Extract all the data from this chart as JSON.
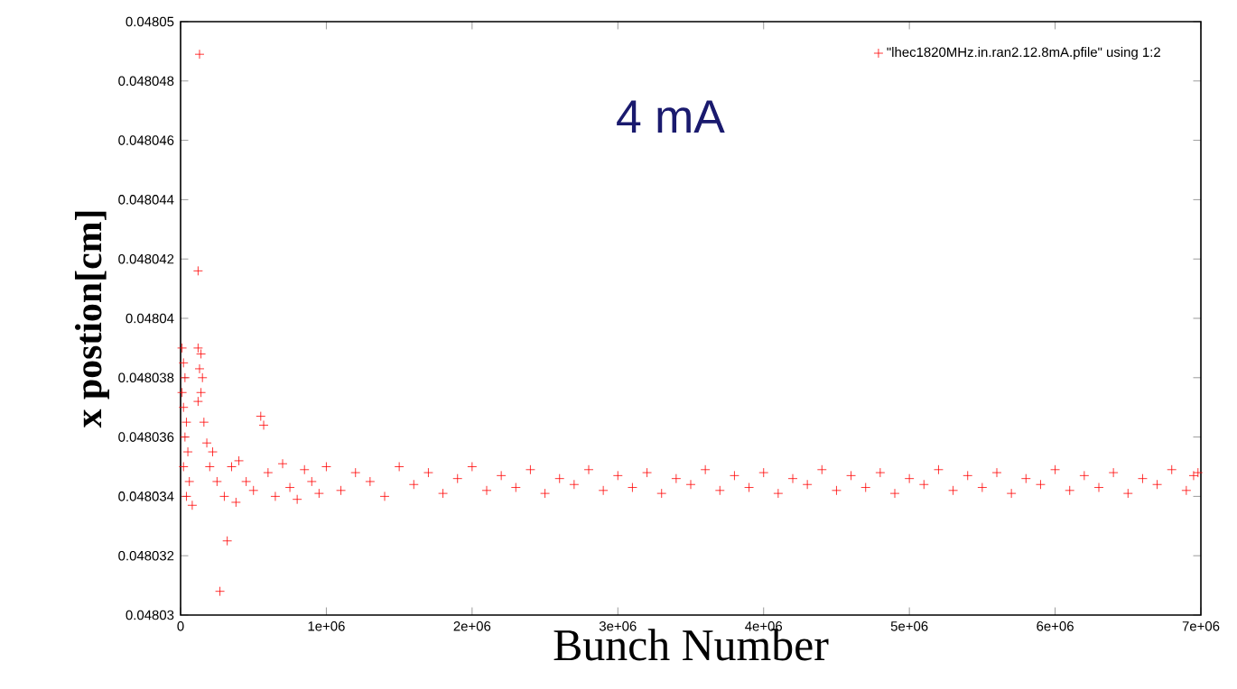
{
  "chart_data": {
    "type": "scatter",
    "xlabel": "Bunch Number",
    "ylabel": "x postion[cm]",
    "annotations": [
      "4 mA"
    ],
    "xlim": [
      0,
      7000000
    ],
    "ylim": [
      0.04803,
      0.04805
    ],
    "xticks": [
      {
        "value": 0,
        "label": "0"
      },
      {
        "value": 1000000,
        "label": "1e+06"
      },
      {
        "value": 2000000,
        "label": "2e+06"
      },
      {
        "value": 3000000,
        "label": "3e+06"
      },
      {
        "value": 4000000,
        "label": "4e+06"
      },
      {
        "value": 5000000,
        "label": "5e+06"
      },
      {
        "value": 6000000,
        "label": "6e+06"
      },
      {
        "value": 7000000,
        "label": "7e+06"
      }
    ],
    "yticks": [
      0.04803,
      0.048032,
      0.048034,
      0.048036,
      0.048038,
      0.04804,
      0.048042,
      0.048044,
      0.048046,
      0.048048,
      0.04805
    ],
    "marker": "cross",
    "legend": "top right",
    "grid": false,
    "series": [
      {
        "name": "\"lhec1820MHz.in.ran2.12.8mA.pfile\" using 1:2",
        "color": "#ff0000",
        "x": [
          10000,
          20000,
          30000,
          10000,
          20000,
          40000,
          30000,
          50000,
          20000,
          60000,
          40000,
          80000,
          120000,
          140000,
          130000,
          150000,
          140000,
          120000,
          160000,
          130000,
          120000,
          180000,
          200000,
          220000,
          250000,
          270000,
          300000,
          320000,
          350000,
          380000,
          400000,
          450000,
          500000,
          550000,
          570000,
          600000,
          650000,
          700000,
          750000,
          800000,
          850000,
          900000,
          950000,
          1000000,
          1100000,
          1200000,
          1300000,
          1400000,
          1500000,
          1600000,
          1700000,
          1800000,
          1900000,
          2000000,
          2100000,
          2200000,
          2300000,
          2400000,
          2500000,
          2600000,
          2700000,
          2800000,
          2900000,
          3000000,
          3100000,
          3200000,
          3300000,
          3400000,
          3500000,
          3600000,
          3700000,
          3800000,
          3900000,
          4000000,
          4100000,
          4200000,
          4300000,
          4400000,
          4500000,
          4600000,
          4700000,
          4800000,
          4900000,
          5000000,
          5100000,
          5200000,
          5300000,
          5400000,
          5500000,
          5600000,
          5700000,
          5800000,
          5900000,
          6000000,
          6100000,
          6200000,
          6300000,
          6400000,
          6500000,
          6600000,
          6700000,
          6800000,
          6900000,
          6950000,
          6980000
        ],
        "values": [
          0.048039,
          0.0480385,
          0.048038,
          0.0480375,
          0.048037,
          0.0480365,
          0.048036,
          0.0480355,
          0.048035,
          0.0480345,
          0.048034,
          0.0480337,
          0.048039,
          0.0480388,
          0.0480383,
          0.048038,
          0.0480375,
          0.0480372,
          0.0480365,
          0.0480489,
          0.0480416,
          0.0480358,
          0.048035,
          0.0480355,
          0.0480345,
          0.0480308,
          0.048034,
          0.0480325,
          0.048035,
          0.0480338,
          0.0480352,
          0.0480345,
          0.0480342,
          0.0480367,
          0.0480364,
          0.0480348,
          0.048034,
          0.0480351,
          0.0480343,
          0.0480339,
          0.0480349,
          0.0480345,
          0.0480341,
          0.048035,
          0.0480342,
          0.0480348,
          0.0480345,
          0.048034,
          0.048035,
          0.0480344,
          0.0480348,
          0.0480341,
          0.0480346,
          0.048035,
          0.0480342,
          0.0480347,
          0.0480343,
          0.0480349,
          0.0480341,
          0.0480346,
          0.0480344,
          0.0480349,
          0.0480342,
          0.0480347,
          0.0480343,
          0.0480348,
          0.0480341,
          0.0480346,
          0.0480344,
          0.0480349,
          0.0480342,
          0.0480347,
          0.0480343,
          0.0480348,
          0.0480341,
          0.0480346,
          0.0480344,
          0.0480349,
          0.0480342,
          0.0480347,
          0.0480343,
          0.0480348,
          0.0480341,
          0.0480346,
          0.0480344,
          0.0480349,
          0.0480342,
          0.0480347,
          0.0480343,
          0.0480348,
          0.0480341,
          0.0480346,
          0.0480344,
          0.0480349,
          0.0480342,
          0.0480347,
          0.0480343,
          0.0480348,
          0.0480341,
          0.0480346,
          0.0480344,
          0.0480349,
          0.0480342,
          0.0480347,
          0.0480348
        ]
      }
    ]
  }
}
